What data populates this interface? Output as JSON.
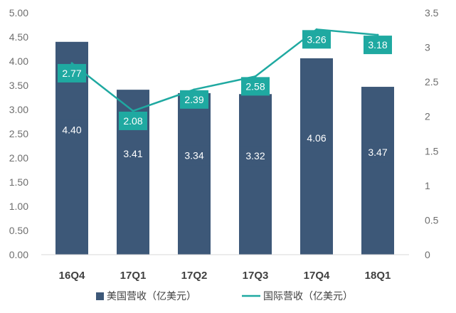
{
  "chart_data": {
    "type": "bar",
    "categories": [
      "16Q4",
      "17Q1",
      "17Q2",
      "17Q3",
      "17Q4",
      "18Q1"
    ],
    "series": [
      {
        "name": "美国营收（亿美元）",
        "type": "bar",
        "axis": "left",
        "color": "#3d5878",
        "values": [
          4.4,
          3.41,
          3.34,
          3.32,
          4.06,
          3.47
        ],
        "labels": [
          "4.40",
          "3.41",
          "3.34",
          "3.32",
          "4.06",
          "3.47"
        ]
      },
      {
        "name": "国际营收（亿美元）",
        "type": "line",
        "axis": "right",
        "color": "#1fa9a1",
        "values": [
          2.77,
          2.08,
          2.39,
          2.58,
          3.26,
          3.18
        ],
        "labels": [
          "2.77",
          "2.08",
          "2.39",
          "2.58",
          "3.26",
          "3.18"
        ]
      }
    ],
    "y_left": {
      "min": 0,
      "max": 5,
      "step": 0.5,
      "ticks": [
        "0.00",
        "0.50",
        "1.00",
        "1.50",
        "2.00",
        "2.50",
        "3.00",
        "3.50",
        "4.00",
        "4.50",
        "5.00"
      ]
    },
    "y_right": {
      "min": 0,
      "max": 3.5,
      "step": 0.5,
      "ticks": [
        "0",
        "0.5",
        "1",
        "1.5",
        "2",
        "2.5",
        "3",
        "3.5"
      ]
    },
    "legend": "bottom",
    "colors": {
      "bar": "#3d5878",
      "line": "#1fa9a1",
      "axis_text": "#6e6e6e",
      "axis_line": "#d9d9d9"
    }
  }
}
